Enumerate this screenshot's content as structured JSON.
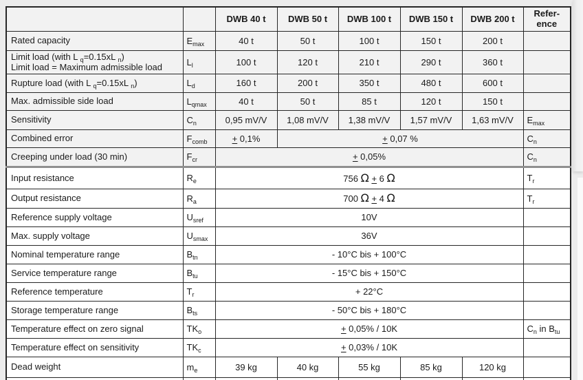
{
  "table": {
    "header": {
      "blank_param": "",
      "blank_symbol": "",
      "columns": [
        "DWB 40 t",
        "DWB 50 t",
        "DWB 100 t",
        "DWB 150 t",
        "DWB 200 t"
      ],
      "reference": "Refer-\nence"
    },
    "rows": [
      {
        "name": "rated-capacity",
        "label": [
          [
            "t",
            "Rated capacity"
          ]
        ],
        "symbol": [
          [
            "t",
            "E"
          ],
          [
            "s",
            "max"
          ]
        ],
        "cells": [
          {
            "span": 1,
            "seg": [
              [
                "t",
                "40 t"
              ]
            ]
          },
          {
            "span": 1,
            "seg": [
              [
                "t",
                "50 t"
              ]
            ]
          },
          {
            "span": 1,
            "seg": [
              [
                "t",
                "100 t"
              ]
            ]
          },
          {
            "span": 1,
            "seg": [
              [
                "t",
                "150 t"
              ]
            ]
          },
          {
            "span": 1,
            "seg": [
              [
                "t",
                "200 t"
              ]
            ]
          }
        ],
        "ref": []
      },
      {
        "name": "limit-load",
        "label": [
          [
            "t",
            "Limit load (with L "
          ],
          [
            "s",
            "q"
          ],
          [
            "t",
            "=0.15xL "
          ],
          [
            "s",
            "n"
          ],
          [
            "t",
            ")"
          ],
          [
            "br",
            ""
          ],
          [
            "t",
            "Limit load = Maximum admissible load"
          ]
        ],
        "symbol": [
          [
            "t",
            "L"
          ],
          [
            "s",
            "l"
          ]
        ],
        "cells": [
          {
            "span": 1,
            "seg": [
              [
                "t",
                "100 t"
              ]
            ]
          },
          {
            "span": 1,
            "seg": [
              [
                "t",
                "120 t"
              ]
            ]
          },
          {
            "span": 1,
            "seg": [
              [
                "t",
                "210 t"
              ]
            ]
          },
          {
            "span": 1,
            "seg": [
              [
                "t",
                "290 t"
              ]
            ]
          },
          {
            "span": 1,
            "seg": [
              [
                "t",
                "360 t"
              ]
            ]
          }
        ],
        "ref": []
      },
      {
        "name": "rupture-load",
        "label": [
          [
            "t",
            "Rupture load (with L "
          ],
          [
            "s",
            "q"
          ],
          [
            "t",
            "=0.15xL "
          ],
          [
            "s",
            "n"
          ],
          [
            "t",
            ")"
          ]
        ],
        "symbol": [
          [
            "t",
            "L"
          ],
          [
            "s",
            "d"
          ]
        ],
        "cells": [
          {
            "span": 1,
            "seg": [
              [
                "t",
                "160 t"
              ]
            ]
          },
          {
            "span": 1,
            "seg": [
              [
                "t",
                "200 t"
              ]
            ]
          },
          {
            "span": 1,
            "seg": [
              [
                "t",
                "350 t"
              ]
            ]
          },
          {
            "span": 1,
            "seg": [
              [
                "t",
                "480 t"
              ]
            ]
          },
          {
            "span": 1,
            "seg": [
              [
                "t",
                "600 t"
              ]
            ]
          }
        ],
        "ref": []
      },
      {
        "name": "max-admissible-side-load",
        "label": [
          [
            "t",
            "Max. admissible side load"
          ]
        ],
        "symbol": [
          [
            "t",
            "L"
          ],
          [
            "s",
            "qmax"
          ]
        ],
        "cells": [
          {
            "span": 1,
            "seg": [
              [
                "t",
                "40 t"
              ]
            ]
          },
          {
            "span": 1,
            "seg": [
              [
                "t",
                "50 t"
              ]
            ]
          },
          {
            "span": 1,
            "seg": [
              [
                "t",
                "85 t"
              ]
            ]
          },
          {
            "span": 1,
            "seg": [
              [
                "t",
                "120 t"
              ]
            ]
          },
          {
            "span": 1,
            "seg": [
              [
                "t",
                "150 t"
              ]
            ]
          }
        ],
        "ref": []
      },
      {
        "name": "sensitivity",
        "label": [
          [
            "t",
            "Sensitivity"
          ]
        ],
        "symbol": [
          [
            "t",
            "C"
          ],
          [
            "s",
            "n"
          ]
        ],
        "cells": [
          {
            "span": 1,
            "seg": [
              [
                "t",
                "0,95 mV/V"
              ]
            ]
          },
          {
            "span": 1,
            "seg": [
              [
                "t",
                "1,08 mV/V"
              ]
            ]
          },
          {
            "span": 1,
            "seg": [
              [
                "t",
                "1,38 mV/V"
              ]
            ]
          },
          {
            "span": 1,
            "seg": [
              [
                "t",
                "1,57 mV/V"
              ]
            ]
          },
          {
            "span": 1,
            "seg": [
              [
                "t",
                "1,63 mV/V"
              ]
            ]
          }
        ],
        "ref": [
          [
            "t",
            "E"
          ],
          [
            "s",
            "max"
          ]
        ]
      },
      {
        "name": "combined-error",
        "label": [
          [
            "t",
            "Combined error"
          ]
        ],
        "symbol": [
          [
            "t",
            "F"
          ],
          [
            "s",
            "comb"
          ]
        ],
        "cells": [
          {
            "span": 1,
            "seg": [
              [
                "pm",
                "+"
              ],
              [
                "t",
                " 0,1%"
              ]
            ]
          },
          {
            "span": 4,
            "seg": [
              [
                "pm",
                "+"
              ],
              [
                "t",
                " 0,07 %"
              ]
            ]
          }
        ],
        "ref": [
          [
            "t",
            "C"
          ],
          [
            "s",
            "n"
          ]
        ]
      },
      {
        "name": "creeping-under-load",
        "label": [
          [
            "t",
            "Creeping under load (30 min)"
          ]
        ],
        "symbol": [
          [
            "t",
            "F"
          ],
          [
            "s",
            "cr"
          ]
        ],
        "cells": [
          {
            "span": 5,
            "seg": [
              [
                "pm",
                "+"
              ],
              [
                "t",
                " 0,05%"
              ]
            ]
          }
        ],
        "ref": [
          [
            "t",
            "C"
          ],
          [
            "s",
            "n"
          ]
        ]
      },
      {
        "name": "input-resistance",
        "label": [
          [
            "t",
            "Input resistance"
          ]
        ],
        "symbol": [
          [
            "t",
            "R"
          ],
          [
            "s",
            "e"
          ]
        ],
        "cells": [
          {
            "span": 5,
            "seg": [
              [
                "t",
                "756 "
              ],
              [
                "b",
                "Ω"
              ],
              [
                "t",
                " "
              ],
              [
                "pm",
                "+"
              ],
              [
                "t",
                " 6 "
              ],
              [
                "b",
                "Ω"
              ]
            ]
          }
        ],
        "ref": [
          [
            "t",
            "T"
          ],
          [
            "s",
            "r"
          ]
        ]
      },
      {
        "name": "output-resistance",
        "label": [
          [
            "t",
            "Output resistance"
          ]
        ],
        "symbol": [
          [
            "t",
            "R"
          ],
          [
            "s",
            "a"
          ]
        ],
        "cells": [
          {
            "span": 5,
            "seg": [
              [
                "t",
                "700 "
              ],
              [
                "b",
                "Ω"
              ],
              [
                "t",
                " "
              ],
              [
                "pm",
                "+"
              ],
              [
                "t",
                " 4 "
              ],
              [
                "b",
                "Ω"
              ]
            ]
          }
        ],
        "ref": [
          [
            "t",
            "T"
          ],
          [
            "s",
            "r"
          ]
        ]
      },
      {
        "name": "reference-supply-voltage",
        "label": [
          [
            "t",
            "Reference supply voltage"
          ]
        ],
        "symbol": [
          [
            "t",
            "U"
          ],
          [
            "s",
            "sref"
          ]
        ],
        "cells": [
          {
            "span": 5,
            "seg": [
              [
                "t",
                "10V"
              ]
            ]
          }
        ],
        "ref": []
      },
      {
        "name": "max-supply-voltage",
        "label": [
          [
            "t",
            "Max. supply voltage"
          ]
        ],
        "symbol": [
          [
            "t",
            "U"
          ],
          [
            "s",
            "smax"
          ]
        ],
        "cells": [
          {
            "span": 5,
            "seg": [
              [
                "t",
                "36V"
              ]
            ]
          }
        ],
        "ref": []
      },
      {
        "name": "nominal-temperature-range",
        "label": [
          [
            "t",
            "Nominal temperature range"
          ]
        ],
        "symbol": [
          [
            "t",
            "B"
          ],
          [
            "s",
            "tn"
          ]
        ],
        "cells": [
          {
            "span": 5,
            "seg": [
              [
                "t",
                "- 10°C bis + 100°C"
              ]
            ]
          }
        ],
        "ref": []
      },
      {
        "name": "service-temperature-range",
        "label": [
          [
            "t",
            "Service temperature range"
          ]
        ],
        "symbol": [
          [
            "t",
            "B"
          ],
          [
            "s",
            "tu"
          ]
        ],
        "cells": [
          {
            "span": 5,
            "seg": [
              [
                "t",
                "- 15°C bis + 150°C"
              ]
            ]
          }
        ],
        "ref": []
      },
      {
        "name": "reference-temperature",
        "label": [
          [
            "t",
            "Reference temperature"
          ]
        ],
        "symbol": [
          [
            "t",
            "T"
          ],
          [
            "s",
            "r"
          ]
        ],
        "cells": [
          {
            "span": 5,
            "seg": [
              [
                "t",
                "+ 22°C"
              ]
            ]
          }
        ],
        "ref": []
      },
      {
        "name": "storage-temperature-range",
        "label": [
          [
            "t",
            "Storage temperature range"
          ]
        ],
        "symbol": [
          [
            "t",
            "B"
          ],
          [
            "s",
            "ts"
          ]
        ],
        "cells": [
          {
            "span": 5,
            "seg": [
              [
                "t",
                "- 50°C bis + 180°C"
              ]
            ]
          }
        ],
        "ref": []
      },
      {
        "name": "temperature-effect-zero-signal",
        "label": [
          [
            "t",
            "Temperature effect on zero signal"
          ]
        ],
        "symbol": [
          [
            "t",
            "TK"
          ],
          [
            "s",
            "o"
          ]
        ],
        "cells": [
          {
            "span": 5,
            "seg": [
              [
                "pm",
                "+"
              ],
              [
                "t",
                " 0,05% / 10K"
              ]
            ]
          }
        ],
        "ref": [
          [
            "t",
            "C"
          ],
          [
            "s",
            "n"
          ],
          [
            "t",
            " in B"
          ],
          [
            "s",
            "tu"
          ]
        ]
      },
      {
        "name": "temperature-effect-sensitivity",
        "label": [
          [
            "t",
            "Temperature effect on sensitivity"
          ]
        ],
        "symbol": [
          [
            "t",
            "TK"
          ],
          [
            "s",
            "c"
          ]
        ],
        "cells": [
          {
            "span": 5,
            "seg": [
              [
                "pm",
                "+"
              ],
              [
                "t",
                " 0,03% / 10K"
              ]
            ]
          }
        ],
        "ref": []
      },
      {
        "name": "dead-weight",
        "label": [
          [
            "t",
            "Dead weight"
          ]
        ],
        "symbol": [
          [
            "t",
            "m"
          ],
          [
            "s",
            "e"
          ]
        ],
        "cells": [
          {
            "span": 1,
            "seg": [
              [
                "t",
                "39 kg"
              ]
            ]
          },
          {
            "span": 1,
            "seg": [
              [
                "t",
                "40 kg"
              ]
            ]
          },
          {
            "span": 1,
            "seg": [
              [
                "t",
                "55 kg"
              ]
            ]
          },
          {
            "span": 1,
            "seg": [
              [
                "t",
                "85 kg"
              ]
            ]
          },
          {
            "span": 1,
            "seg": [
              [
                "t",
                "120 kg"
              ]
            ]
          }
        ],
        "ref": []
      }
    ]
  }
}
